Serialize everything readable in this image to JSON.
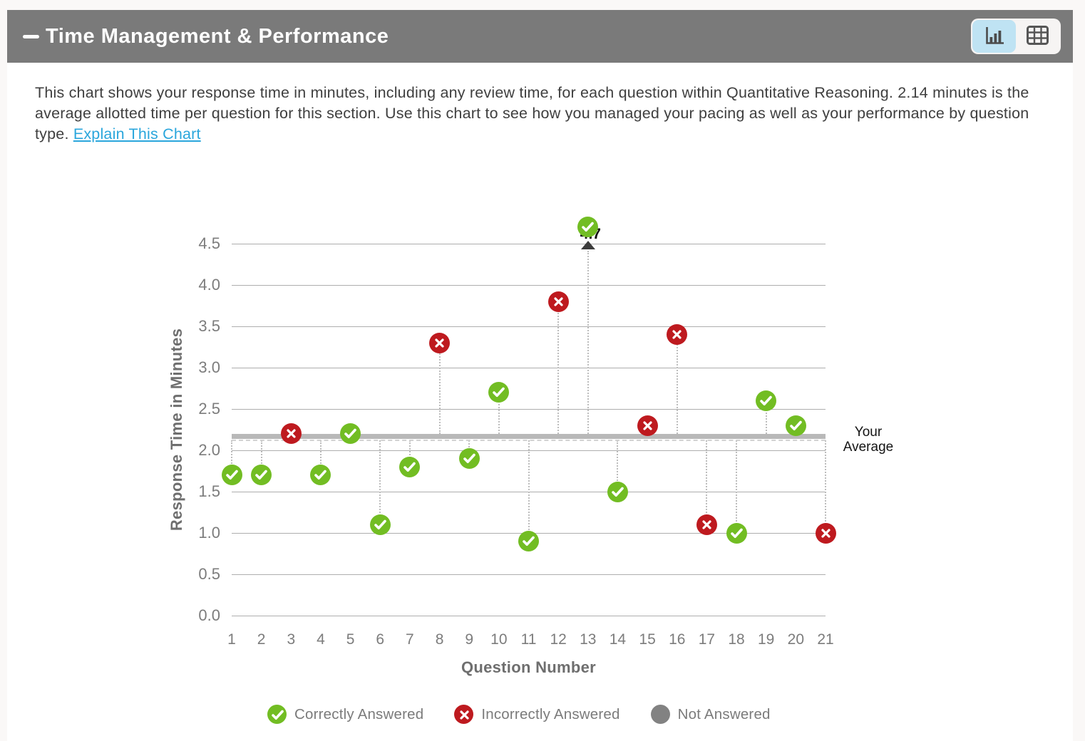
{
  "header": {
    "title": "Time Management & Performance"
  },
  "toolbar": {
    "active_view": "chart",
    "chart_button": "chart-view",
    "table_button": "table-view"
  },
  "description": {
    "text": "This chart shows your response time in minutes, including any review time, for each question within Quantitative Reasoning. 2.14 minutes is the average allotted time per question for this section. Use this chart to see how you managed your pacing as well as your performance by question type.",
    "link_label": "Explain This Chart"
  },
  "chart_data": {
    "type": "scatter",
    "xlabel": "Question Number",
    "ylabel": "Response Time in Minutes",
    "xlim": [
      1,
      21
    ],
    "ylim": [
      0.0,
      4.5
    ],
    "y_ticks": [
      "0.0",
      "0.5",
      "1.0",
      "1.5",
      "2.0",
      "2.5",
      "3.0",
      "3.5",
      "4.0",
      "4.5"
    ],
    "x_ticks": [
      "1",
      "2",
      "3",
      "4",
      "5",
      "6",
      "7",
      "8",
      "9",
      "10",
      "11",
      "12",
      "13",
      "14",
      "15",
      "16",
      "17",
      "18",
      "19",
      "20",
      "21"
    ],
    "grid": true,
    "average": {
      "value": 2.14,
      "label": "Your Average"
    },
    "points": [
      {
        "q": 1,
        "minutes": 1.7,
        "status": "correct"
      },
      {
        "q": 2,
        "minutes": 1.7,
        "status": "correct"
      },
      {
        "q": 3,
        "minutes": 2.2,
        "status": "incorrect"
      },
      {
        "q": 4,
        "minutes": 1.7,
        "status": "correct"
      },
      {
        "q": 5,
        "minutes": 2.2,
        "status": "correct"
      },
      {
        "q": 6,
        "minutes": 1.1,
        "status": "correct"
      },
      {
        "q": 7,
        "minutes": 1.8,
        "status": "correct"
      },
      {
        "q": 8,
        "minutes": 3.3,
        "status": "incorrect"
      },
      {
        "q": 9,
        "minutes": 1.9,
        "status": "correct"
      },
      {
        "q": 10,
        "minutes": 2.7,
        "status": "correct"
      },
      {
        "q": 11,
        "minutes": 0.9,
        "status": "correct"
      },
      {
        "q": 12,
        "minutes": 3.8,
        "status": "incorrect"
      },
      {
        "q": 13,
        "minutes": 4.7,
        "status": "correct",
        "above_max": true,
        "value_label": "4.7"
      },
      {
        "q": 14,
        "minutes": 1.5,
        "status": "correct"
      },
      {
        "q": 15,
        "minutes": 2.3,
        "status": "incorrect"
      },
      {
        "q": 16,
        "minutes": 3.4,
        "status": "incorrect"
      },
      {
        "q": 17,
        "minutes": 1.1,
        "status": "incorrect"
      },
      {
        "q": 18,
        "minutes": 1.0,
        "status": "correct"
      },
      {
        "q": 19,
        "minutes": 2.6,
        "status": "correct"
      },
      {
        "q": 20,
        "minutes": 2.3,
        "status": "correct"
      },
      {
        "q": 21,
        "minutes": 1.0,
        "status": "incorrect"
      }
    ],
    "legend": [
      {
        "status": "correct",
        "label": "Correctly Answered"
      },
      {
        "status": "incorrect",
        "label": "Incorrectly Answered"
      },
      {
        "status": "none",
        "label": "Not Answered"
      }
    ],
    "legend_position": "bottom"
  },
  "colors": {
    "header_bg": "#7a7a7a",
    "active_toggle_bg": "#bfe3f3",
    "link": "#2aa6dc",
    "correct_green": "#72bd23",
    "incorrect_red": "#be1a1f",
    "not_answered_gray": "#828282",
    "gridline": "#aeaeae",
    "average_line": "#b9b9b9"
  }
}
